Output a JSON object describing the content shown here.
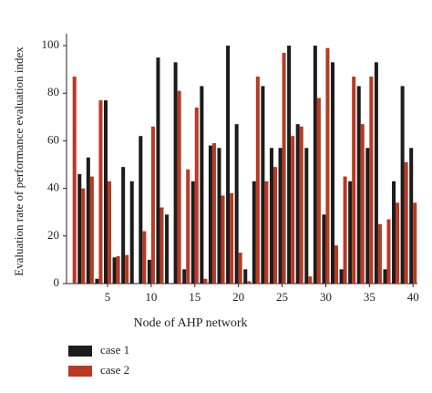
{
  "chart_data": {
    "type": "bar",
    "x_label": "Node of AHP network",
    "y_label": "Evaluation rate of performance evaluation index",
    "x": [
      1,
      2,
      3,
      4,
      5,
      6,
      7,
      8,
      9,
      10,
      11,
      12,
      13,
      14,
      15,
      16,
      17,
      18,
      19,
      20,
      21,
      22,
      23,
      24,
      25,
      26,
      27,
      28,
      29,
      30,
      31,
      32,
      33,
      34,
      35,
      36,
      37,
      38,
      39,
      40
    ],
    "series": [
      {
        "name": "case 1",
        "color": "#1c1c1c",
        "values": [
          0,
          46,
          53,
          2,
          77,
          11,
          49,
          43,
          62,
          10,
          95,
          29,
          93,
          6,
          43,
          83,
          58,
          57,
          100,
          67,
          6,
          43,
          83,
          57,
          57,
          100,
          67,
          57,
          100,
          29,
          93,
          6,
          43,
          83,
          57,
          93,
          6,
          43,
          83,
          57
        ]
      },
      {
        "name": "case 2",
        "color": "#b83a22",
        "values": [
          87,
          40,
          45,
          77,
          43,
          11.5,
          12,
          0,
          22,
          66,
          32,
          0,
          81,
          48,
          74,
          2,
          59,
          37,
          38,
          13,
          1,
          87,
          43,
          49,
          97,
          62,
          66,
          3,
          78,
          99,
          16,
          45,
          87,
          67,
          87,
          25,
          27,
          34,
          51,
          34
        ]
      }
    ],
    "xlim": [
      0.3,
      40.5
    ],
    "xticks": [
      5,
      10,
      15,
      20,
      25,
      30,
      35,
      40
    ],
    "ylim": [
      0,
      105
    ],
    "yticks": [
      0,
      20,
      40,
      60,
      80,
      100
    ]
  }
}
